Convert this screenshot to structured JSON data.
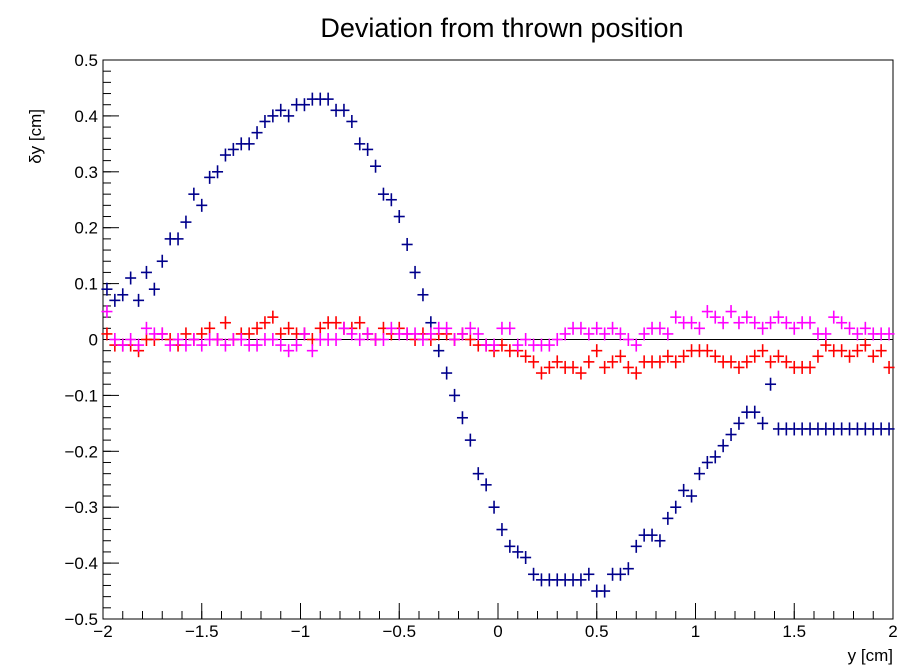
{
  "chart_data": {
    "type": "scatter",
    "title": "Deviation from thrown position",
    "xlabel": "y [cm]",
    "ylabel": "δy [cm]",
    "xlim": [
      -2,
      2
    ],
    "ylim": [
      -0.5,
      0.5
    ],
    "x_ticks": [
      -2,
      -1.5,
      -1,
      -0.5,
      0,
      0.5,
      1,
      1.5,
      2
    ],
    "x_tick_labels": [
      "−2",
      "−1.5",
      "−1",
      "−0.5",
      "0",
      "0.5",
      "1",
      "1.5",
      "2"
    ],
    "y_ticks": [
      -0.5,
      -0.4,
      -0.3,
      -0.2,
      -0.1,
      0,
      0.1,
      0.2,
      0.3,
      0.4,
      0.5
    ],
    "y_tick_labels": [
      "−0.5",
      "−0.4",
      "−0.3",
      "−0.2",
      "−0.1",
      "0",
      "0.1",
      "0.2",
      "0.3",
      "0.4",
      "0.5"
    ],
    "zero_line": true,
    "grid": false,
    "marker": "cross",
    "series": [
      {
        "color": "#00008b",
        "x": [
          -1.98,
          -1.94,
          -1.9,
          -1.86,
          -1.82,
          -1.78,
          -1.74,
          -1.7,
          -1.66,
          -1.62,
          -1.58,
          -1.54,
          -1.5,
          -1.46,
          -1.42,
          -1.38,
          -1.34,
          -1.3,
          -1.26,
          -1.22,
          -1.18,
          -1.14,
          -1.1,
          -1.06,
          -1.02,
          -0.98,
          -0.94,
          -0.9,
          -0.86,
          -0.82,
          -0.78,
          -0.74,
          -0.7,
          -0.66,
          -0.62,
          -0.58,
          -0.54,
          -0.5,
          -0.46,
          -0.42,
          -0.38,
          -0.34,
          -0.3,
          -0.26,
          -0.22,
          -0.18,
          -0.14,
          -0.1,
          -0.06,
          -0.02,
          0.02,
          0.06,
          0.1,
          0.14,
          0.18,
          0.22,
          0.26,
          0.3,
          0.34,
          0.38,
          0.42,
          0.46,
          0.5,
          0.54,
          0.58,
          0.62,
          0.66,
          0.7,
          0.74,
          0.78,
          0.82,
          0.86,
          0.9,
          0.94,
          0.98,
          1.02,
          1.06,
          1.1,
          1.14,
          1.18,
          1.22,
          1.26,
          1.3,
          1.34,
          1.38,
          1.42,
          1.46,
          1.5,
          1.54,
          1.58,
          1.62,
          1.66,
          1.7,
          1.74,
          1.78,
          1.82,
          1.86,
          1.9,
          1.94,
          1.98
        ],
        "y": [
          0.09,
          0.07,
          0.08,
          0.11,
          0.07,
          0.12,
          0.09,
          0.14,
          0.18,
          0.18,
          0.21,
          0.26,
          0.24,
          0.29,
          0.3,
          0.33,
          0.34,
          0.35,
          0.35,
          0.37,
          0.39,
          0.4,
          0.41,
          0.4,
          0.42,
          0.42,
          0.43,
          0.43,
          0.43,
          0.41,
          0.41,
          0.39,
          0.35,
          0.34,
          0.31,
          0.26,
          0.25,
          0.22,
          0.17,
          0.12,
          0.08,
          0.03,
          -0.02,
          -0.06,
          -0.1,
          -0.14,
          -0.18,
          -0.24,
          -0.26,
          -0.3,
          -0.34,
          -0.37,
          -0.38,
          -0.39,
          -0.42,
          -0.43,
          -0.43,
          -0.43,
          -0.43,
          -0.43,
          -0.43,
          -0.42,
          -0.45,
          -0.45,
          -0.42,
          -0.42,
          -0.41,
          -0.37,
          -0.35,
          -0.35,
          -0.36,
          -0.32,
          -0.3,
          -0.27,
          -0.28,
          -0.24,
          -0.22,
          -0.21,
          -0.19,
          -0.17,
          -0.15,
          -0.13,
          -0.13,
          -0.15,
          -0.08,
          -0.16,
          -0.16,
          -0.16,
          -0.16,
          -0.16,
          -0.16,
          -0.16,
          -0.16,
          -0.16,
          -0.16,
          -0.16,
          -0.16,
          -0.16,
          -0.16,
          -0.16
        ]
      },
      {
        "color": "#ff0000",
        "x": [
          -1.98,
          -1.94,
          -1.9,
          -1.86,
          -1.82,
          -1.78,
          -1.74,
          -1.7,
          -1.66,
          -1.62,
          -1.58,
          -1.54,
          -1.5,
          -1.46,
          -1.42,
          -1.38,
          -1.34,
          -1.3,
          -1.26,
          -1.22,
          -1.18,
          -1.14,
          -1.1,
          -1.06,
          -1.02,
          -0.98,
          -0.94,
          -0.9,
          -0.86,
          -0.82,
          -0.78,
          -0.74,
          -0.7,
          -0.66,
          -0.62,
          -0.58,
          -0.54,
          -0.5,
          -0.46,
          -0.42,
          -0.38,
          -0.34,
          -0.3,
          -0.26,
          -0.22,
          -0.18,
          -0.14,
          -0.1,
          -0.06,
          -0.02,
          0.02,
          0.06,
          0.1,
          0.14,
          0.18,
          0.22,
          0.26,
          0.3,
          0.34,
          0.38,
          0.42,
          0.46,
          0.5,
          0.54,
          0.58,
          0.62,
          0.66,
          0.7,
          0.74,
          0.78,
          0.82,
          0.86,
          0.9,
          0.94,
          0.98,
          1.02,
          1.06,
          1.1,
          1.14,
          1.18,
          1.22,
          1.26,
          1.3,
          1.34,
          1.38,
          1.42,
          1.46,
          1.5,
          1.54,
          1.58,
          1.62,
          1.66,
          1.7,
          1.74,
          1.78,
          1.82,
          1.86,
          1.9,
          1.94,
          1.98
        ],
        "y": [
          0.01,
          -0.01,
          -0.01,
          -0.01,
          -0.02,
          0.0,
          0.0,
          0.01,
          0.0,
          -0.01,
          0.01,
          0.0,
          0.01,
          0.02,
          0.0,
          0.03,
          0.0,
          0.01,
          0.01,
          0.02,
          0.03,
          0.04,
          0.01,
          0.02,
          0.01,
          0.01,
          0.0,
          0.02,
          0.03,
          0.03,
          0.02,
          0.02,
          0.03,
          0.01,
          0.0,
          0.02,
          0.01,
          0.02,
          0.01,
          0.0,
          0.01,
          0.0,
          0.01,
          0.01,
          0.0,
          0.01,
          0.0,
          -0.01,
          -0.01,
          -0.02,
          -0.01,
          -0.02,
          -0.02,
          -0.03,
          -0.04,
          -0.06,
          -0.05,
          -0.04,
          -0.05,
          -0.05,
          -0.06,
          -0.04,
          -0.02,
          -0.05,
          -0.04,
          -0.03,
          -0.05,
          -0.06,
          -0.04,
          -0.04,
          -0.04,
          -0.03,
          -0.04,
          -0.03,
          -0.02,
          -0.02,
          -0.02,
          -0.03,
          -0.04,
          -0.04,
          -0.05,
          -0.04,
          -0.03,
          -0.02,
          -0.04,
          -0.03,
          -0.04,
          -0.05,
          -0.05,
          -0.05,
          -0.03,
          -0.01,
          -0.02,
          -0.02,
          -0.03,
          -0.02,
          -0.01,
          -0.03,
          -0.02,
          -0.05
        ]
      },
      {
        "color": "#ff00ff",
        "x": [
          -1.98,
          -1.94,
          -1.9,
          -1.86,
          -1.82,
          -1.78,
          -1.74,
          -1.7,
          -1.66,
          -1.62,
          -1.58,
          -1.54,
          -1.5,
          -1.46,
          -1.42,
          -1.38,
          -1.34,
          -1.3,
          -1.26,
          -1.22,
          -1.18,
          -1.14,
          -1.1,
          -1.06,
          -1.02,
          -0.98,
          -0.94,
          -0.9,
          -0.86,
          -0.82,
          -0.78,
          -0.74,
          -0.7,
          -0.66,
          -0.62,
          -0.58,
          -0.54,
          -0.5,
          -0.46,
          -0.42,
          -0.38,
          -0.34,
          -0.3,
          -0.26,
          -0.22,
          -0.18,
          -0.14,
          -0.1,
          -0.06,
          -0.02,
          0.02,
          0.06,
          0.1,
          0.14,
          0.18,
          0.22,
          0.26,
          0.3,
          0.34,
          0.38,
          0.42,
          0.46,
          0.5,
          0.54,
          0.58,
          0.62,
          0.66,
          0.7,
          0.74,
          0.78,
          0.82,
          0.86,
          0.9,
          0.94,
          0.98,
          1.02,
          1.06,
          1.1,
          1.14,
          1.18,
          1.22,
          1.26,
          1.3,
          1.34,
          1.38,
          1.42,
          1.46,
          1.5,
          1.54,
          1.58,
          1.62,
          1.66,
          1.7,
          1.74,
          1.78,
          1.82,
          1.86,
          1.9,
          1.94,
          1.98
        ],
        "y": [
          0.05,
          0.0,
          -0.01,
          0.0,
          -0.01,
          0.02,
          0.01,
          0.01,
          -0.01,
          0.0,
          -0.01,
          0.0,
          -0.01,
          0.0,
          0.0,
          -0.01,
          0.0,
          0.0,
          -0.01,
          -0.01,
          0.0,
          0.0,
          -0.01,
          -0.02,
          -0.01,
          0.01,
          -0.02,
          0.0,
          0.0,
          0.0,
          0.02,
          0.01,
          0.0,
          0.01,
          0.0,
          0.0,
          0.02,
          0.01,
          0.01,
          0.01,
          0.0,
          0.01,
          0.02,
          0.02,
          0.0,
          0.01,
          0.02,
          0.01,
          -0.01,
          -0.01,
          0.02,
          0.02,
          -0.01,
          0.0,
          -0.01,
          -0.01,
          -0.01,
          0.0,
          0.01,
          0.02,
          0.02,
          0.01,
          0.02,
          0.01,
          0.02,
          0.01,
          0.0,
          -0.01,
          0.01,
          0.02,
          0.02,
          0.01,
          0.04,
          0.03,
          0.03,
          0.02,
          0.05,
          0.04,
          0.03,
          0.05,
          0.03,
          0.04,
          0.03,
          0.02,
          0.03,
          0.04,
          0.03,
          0.02,
          0.03,
          0.03,
          0.01,
          0.01,
          0.04,
          0.03,
          0.02,
          0.01,
          0.02,
          0.01,
          0.01,
          0.01
        ]
      }
    ]
  }
}
